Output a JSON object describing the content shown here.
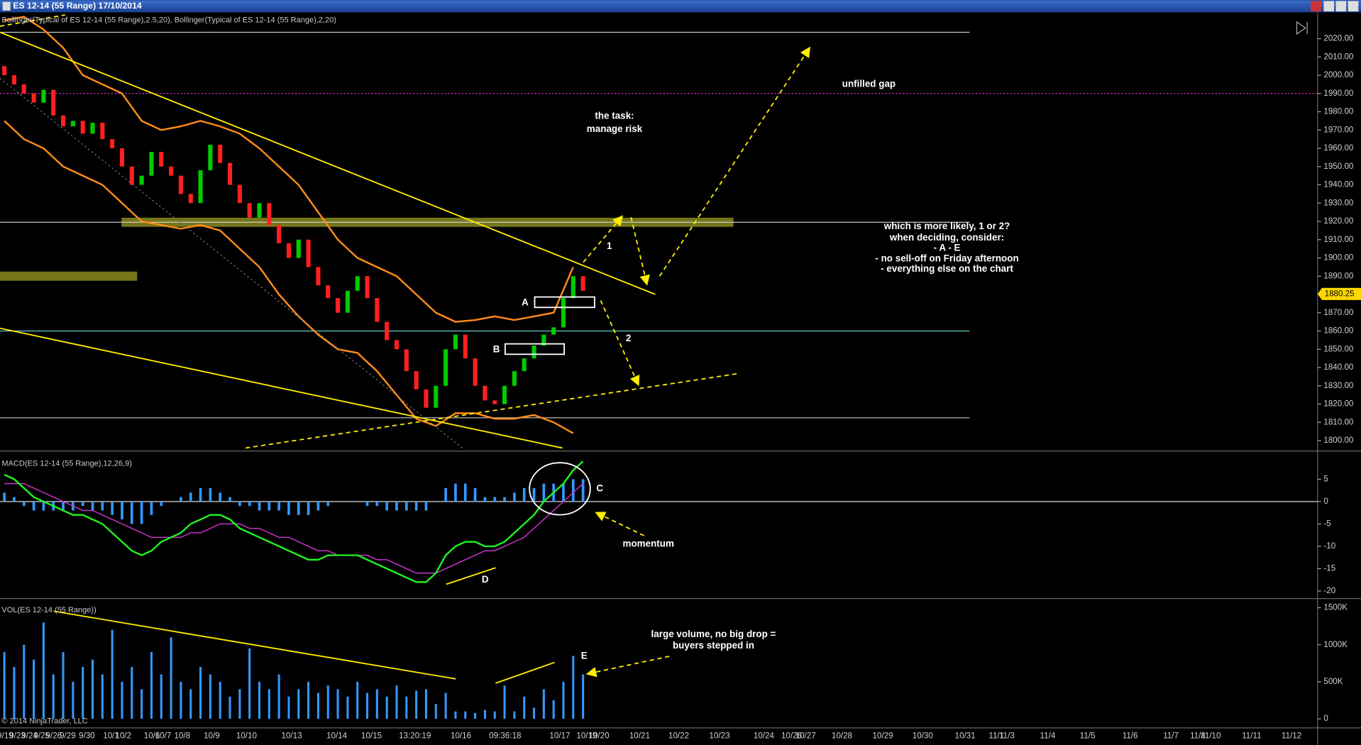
{
  "window_title": "ES 12-14 (55 Range)  17/10/2014",
  "copyright": "© 2014 NinjaTrader, LLC",
  "chart_data": [
    {
      "type": "candlestick",
      "title": "Bollinger(Typical of ES 12-14 (55 Range),2.5,20), Bollinger(Typical of ES 12-14 (55 Range),2,20)",
      "up_color": "#00cc00",
      "down_color": "#ff2020",
      "band_color": "#ff8c1a",
      "open": [
        2005,
        2000,
        1995,
        1990,
        1985,
        1992,
        1978,
        1972,
        1975,
        1968,
        1974,
        1965,
        1960,
        1950,
        1940,
        1945,
        1958,
        1950,
        1945,
        1935,
        1930,
        1948,
        1962,
        1952,
        1940,
        1930,
        1922,
        1930,
        1918,
        1908,
        1900,
        1910,
        1895,
        1885,
        1878,
        1870,
        1882,
        1890,
        1878,
        1865,
        1855,
        1850,
        1838,
        1828,
        1818,
        1830,
        1850,
        1858,
        1845,
        1830,
        1822,
        1820,
        1830,
        1838,
        1845,
        1852,
        1858,
        1862,
        1878,
        1890
      ],
      "close": [
        2000,
        1995,
        1990,
        1985,
        1992,
        1978,
        1972,
        1975,
        1968,
        1974,
        1965,
        1960,
        1950,
        1940,
        1945,
        1958,
        1950,
        1945,
        1935,
        1930,
        1948,
        1962,
        1952,
        1940,
        1930,
        1922,
        1930,
        1918,
        1908,
        1900,
        1910,
        1895,
        1885,
        1878,
        1870,
        1882,
        1890,
        1878,
        1865,
        1855,
        1850,
        1838,
        1828,
        1818,
        1830,
        1850,
        1858,
        1845,
        1830,
        1822,
        1820,
        1830,
        1838,
        1845,
        1852,
        1858,
        1862,
        1878,
        1890,
        1882
      ],
      "upper_band": [
        2030,
        2032,
        2025,
        2015,
        2000,
        1995,
        1990,
        1975,
        1970,
        1972,
        1975,
        1972,
        1968,
        1960,
        1950,
        1940,
        1925,
        1910,
        1900,
        1895,
        1890,
        1880,
        1870,
        1865,
        1866,
        1868,
        1866,
        1868,
        1870,
        1895
      ],
      "lower_band": [
        1975,
        1965,
        1960,
        1950,
        1945,
        1940,
        1930,
        1920,
        1918,
        1916,
        1918,
        1915,
        1905,
        1895,
        1880,
        1868,
        1858,
        1850,
        1848,
        1838,
        1825,
        1812,
        1808,
        1815,
        1815,
        1812,
        1812,
        1814,
        1810,
        1804
      ],
      "last_price": 1880.25,
      "levels": [
        {
          "value": 2023.5,
          "color": "#cccccc",
          "style": "solid"
        },
        {
          "value": 1990,
          "color": "#cc33cc",
          "style": "dotted"
        },
        {
          "value": 1919.5,
          "color": "#cccccc",
          "style": "solid"
        },
        {
          "value": 1860,
          "color": "#66cccc",
          "style": "solid"
        },
        {
          "value": 1812.5,
          "color": "#cccccc",
          "style": "solid"
        }
      ],
      "zones": [
        [
          1917,
          1922
        ],
        [
          1887.5,
          1892.5
        ]
      ],
      "zone_color": "#8a8a1e",
      "ylim": [
        1795,
        2033
      ],
      "yticks": [
        {
          "value": 2020,
          "label": "2020.00"
        },
        {
          "value": 2010,
          "label": "2010.00"
        },
        {
          "value": 2000,
          "label": "2000.00"
        },
        {
          "value": 1990,
          "label": "1990.00"
        },
        {
          "value": 1980,
          "label": "1980.00"
        },
        {
          "value": 1970,
          "label": "1970.00"
        },
        {
          "value": 1960,
          "label": "1960.00"
        },
        {
          "value": 1950,
          "label": "1950.00"
        },
        {
          "value": 1940,
          "label": "1940.00"
        },
        {
          "value": 1930,
          "label": "1930.00"
        },
        {
          "value": 1920,
          "label": "1920.00"
        },
        {
          "value": 1910,
          "label": "1910.00"
        },
        {
          "value": 1900,
          "label": "1900.00"
        },
        {
          "value": 1890,
          "label": "1890.00"
        },
        {
          "value": 1870,
          "label": "1870.00"
        },
        {
          "value": 1860,
          "label": "1860.00"
        },
        {
          "value": 1850,
          "label": "1850.00"
        },
        {
          "value": 1840,
          "label": "1840.00"
        },
        {
          "value": 1830,
          "label": "1830.00"
        },
        {
          "value": 1820,
          "label": "1820.00"
        },
        {
          "value": 1810,
          "label": "1810.00"
        },
        {
          "value": 1800,
          "label": "1800.00"
        }
      ]
    },
    {
      "type": "macd",
      "title": "MACD(ES 12-14 (55 Range),12,26,9)",
      "series": [
        {
          "name": "MACD",
          "color": "#22ee22",
          "values": [
            6,
            5,
            3,
            1,
            0,
            -1,
            -2,
            -3,
            -3,
            -4,
            -5,
            -7,
            -9,
            -11,
            -12,
            -11,
            -9,
            -8,
            -7,
            -5,
            -4,
            -3,
            -3,
            -4,
            -6,
            -7,
            -8,
            -9,
            -10,
            -11,
            -12,
            -13,
            -13,
            -12,
            -12,
            -12,
            -12,
            -13,
            -14,
            -15,
            -16,
            -17,
            -18,
            -18,
            -16,
            -12,
            -10,
            -9,
            -9,
            -10,
            -10,
            -9,
            -7,
            -5,
            -3,
            0,
            2,
            4,
            7,
            9
          ]
        },
        {
          "name": "Avg",
          "color": "#cc33cc",
          "values": [
            4,
            4,
            4,
            3,
            2,
            1,
            0,
            -1,
            -2,
            -2,
            -3,
            -4,
            -5,
            -6,
            -7,
            -8,
            -8,
            -8,
            -8,
            -7,
            -7,
            -6,
            -5,
            -5,
            -5,
            -6,
            -6,
            -7,
            -8,
            -8,
            -9,
            -10,
            -11,
            -11,
            -12,
            -12,
            -12,
            -12,
            -13,
            -13,
            -14,
            -15,
            -16,
            -16,
            -16,
            -15,
            -14,
            -13,
            -12,
            -11,
            -11,
            -10,
            -9,
            -8,
            -6,
            -4,
            -2,
            0,
            2,
            4
          ]
        },
        {
          "name": "Diff",
          "color": "#3399ff",
          "values": [
            2,
            1,
            -1,
            -2,
            -2,
            -2,
            -2,
            -2,
            -1,
            -2,
            -2,
            -3,
            -4,
            -5,
            -5,
            -3,
            -1,
            0,
            1,
            2,
            3,
            3,
            2,
            1,
            -1,
            -1,
            -2,
            -2,
            -2,
            -3,
            -3,
            -3,
            -2,
            -1,
            0,
            0,
            0,
            -1,
            -1,
            -2,
            -2,
            -2,
            -2,
            -2,
            0,
            3,
            4,
            4,
            3,
            1,
            1,
            1,
            2,
            3,
            3,
            4,
            4,
            4,
            5,
            5
          ]
        }
      ],
      "ylim": [
        -21.4,
        10.8
      ],
      "yticks": [
        5,
        0,
        -5,
        -10,
        -15,
        -20
      ]
    },
    {
      "type": "bar",
      "title": "VOL(ES 12-14 (55 Range))",
      "color": "#3399ff",
      "values": [
        900000,
        700000,
        1000000,
        800000,
        1300000,
        600000,
        900000,
        500000,
        700000,
        800000,
        600000,
        1200000,
        500000,
        700000,
        400000,
        900000,
        600000,
        1100000,
        500000,
        400000,
        700000,
        600000,
        500000,
        300000,
        400000,
        950000,
        500000,
        400000,
        600000,
        300000,
        400000,
        500000,
        350000,
        450000,
        400000,
        300000,
        500000,
        350000,
        400000,
        300000,
        450000,
        300000,
        380000,
        400000,
        200000,
        350000,
        100000,
        100000,
        80000,
        120000,
        100000,
        450000,
        100000,
        300000,
        150000,
        400000,
        250000,
        500000,
        850000,
        600000
      ],
      "ylim": [
        -117000,
        1594000
      ],
      "yticks": [
        {
          "value": 1500000,
          "label": "1500K"
        },
        {
          "value": 1000000,
          "label": "1000K"
        },
        {
          "value": 500000,
          "label": "500K"
        },
        0
      ]
    }
  ],
  "time_axis": [
    "9/19",
    "9/23",
    "9/24",
    "9/25",
    "9/26",
    "9/29",
    "9/30",
    "10/1",
    "10/2",
    "10/6",
    "10/7",
    "10/8",
    "10/9",
    "10/10",
    "10/13",
    "10/14",
    "10/15",
    "13:20:19",
    "10/16",
    "09:36:18",
    "10/17",
    "10/19",
    "10/20",
    "10/21",
    "10/22",
    "10/23",
    "10/24",
    "10/26",
    "10/27",
    "10/28",
    "10/29",
    "10/30",
    "10/31",
    "11/1",
    "11/3",
    "11/4",
    "11/5",
    "11/6",
    "11/7",
    "11/8",
    "11/10",
    "11/11",
    "11/12"
  ],
  "annotations": [
    "unfilled gap",
    "the task:",
    "manage risk",
    "1",
    "2",
    "A",
    "B",
    "C",
    "D",
    "E",
    "which is more likely, 1 or 2?",
    "when deciding, consider:",
    "- A - E",
    "- no sell-off on Friday afternoon",
    "- everything else on the chart",
    "momentum",
    "large volume, no big drop =",
    "buyers stepped in"
  ]
}
